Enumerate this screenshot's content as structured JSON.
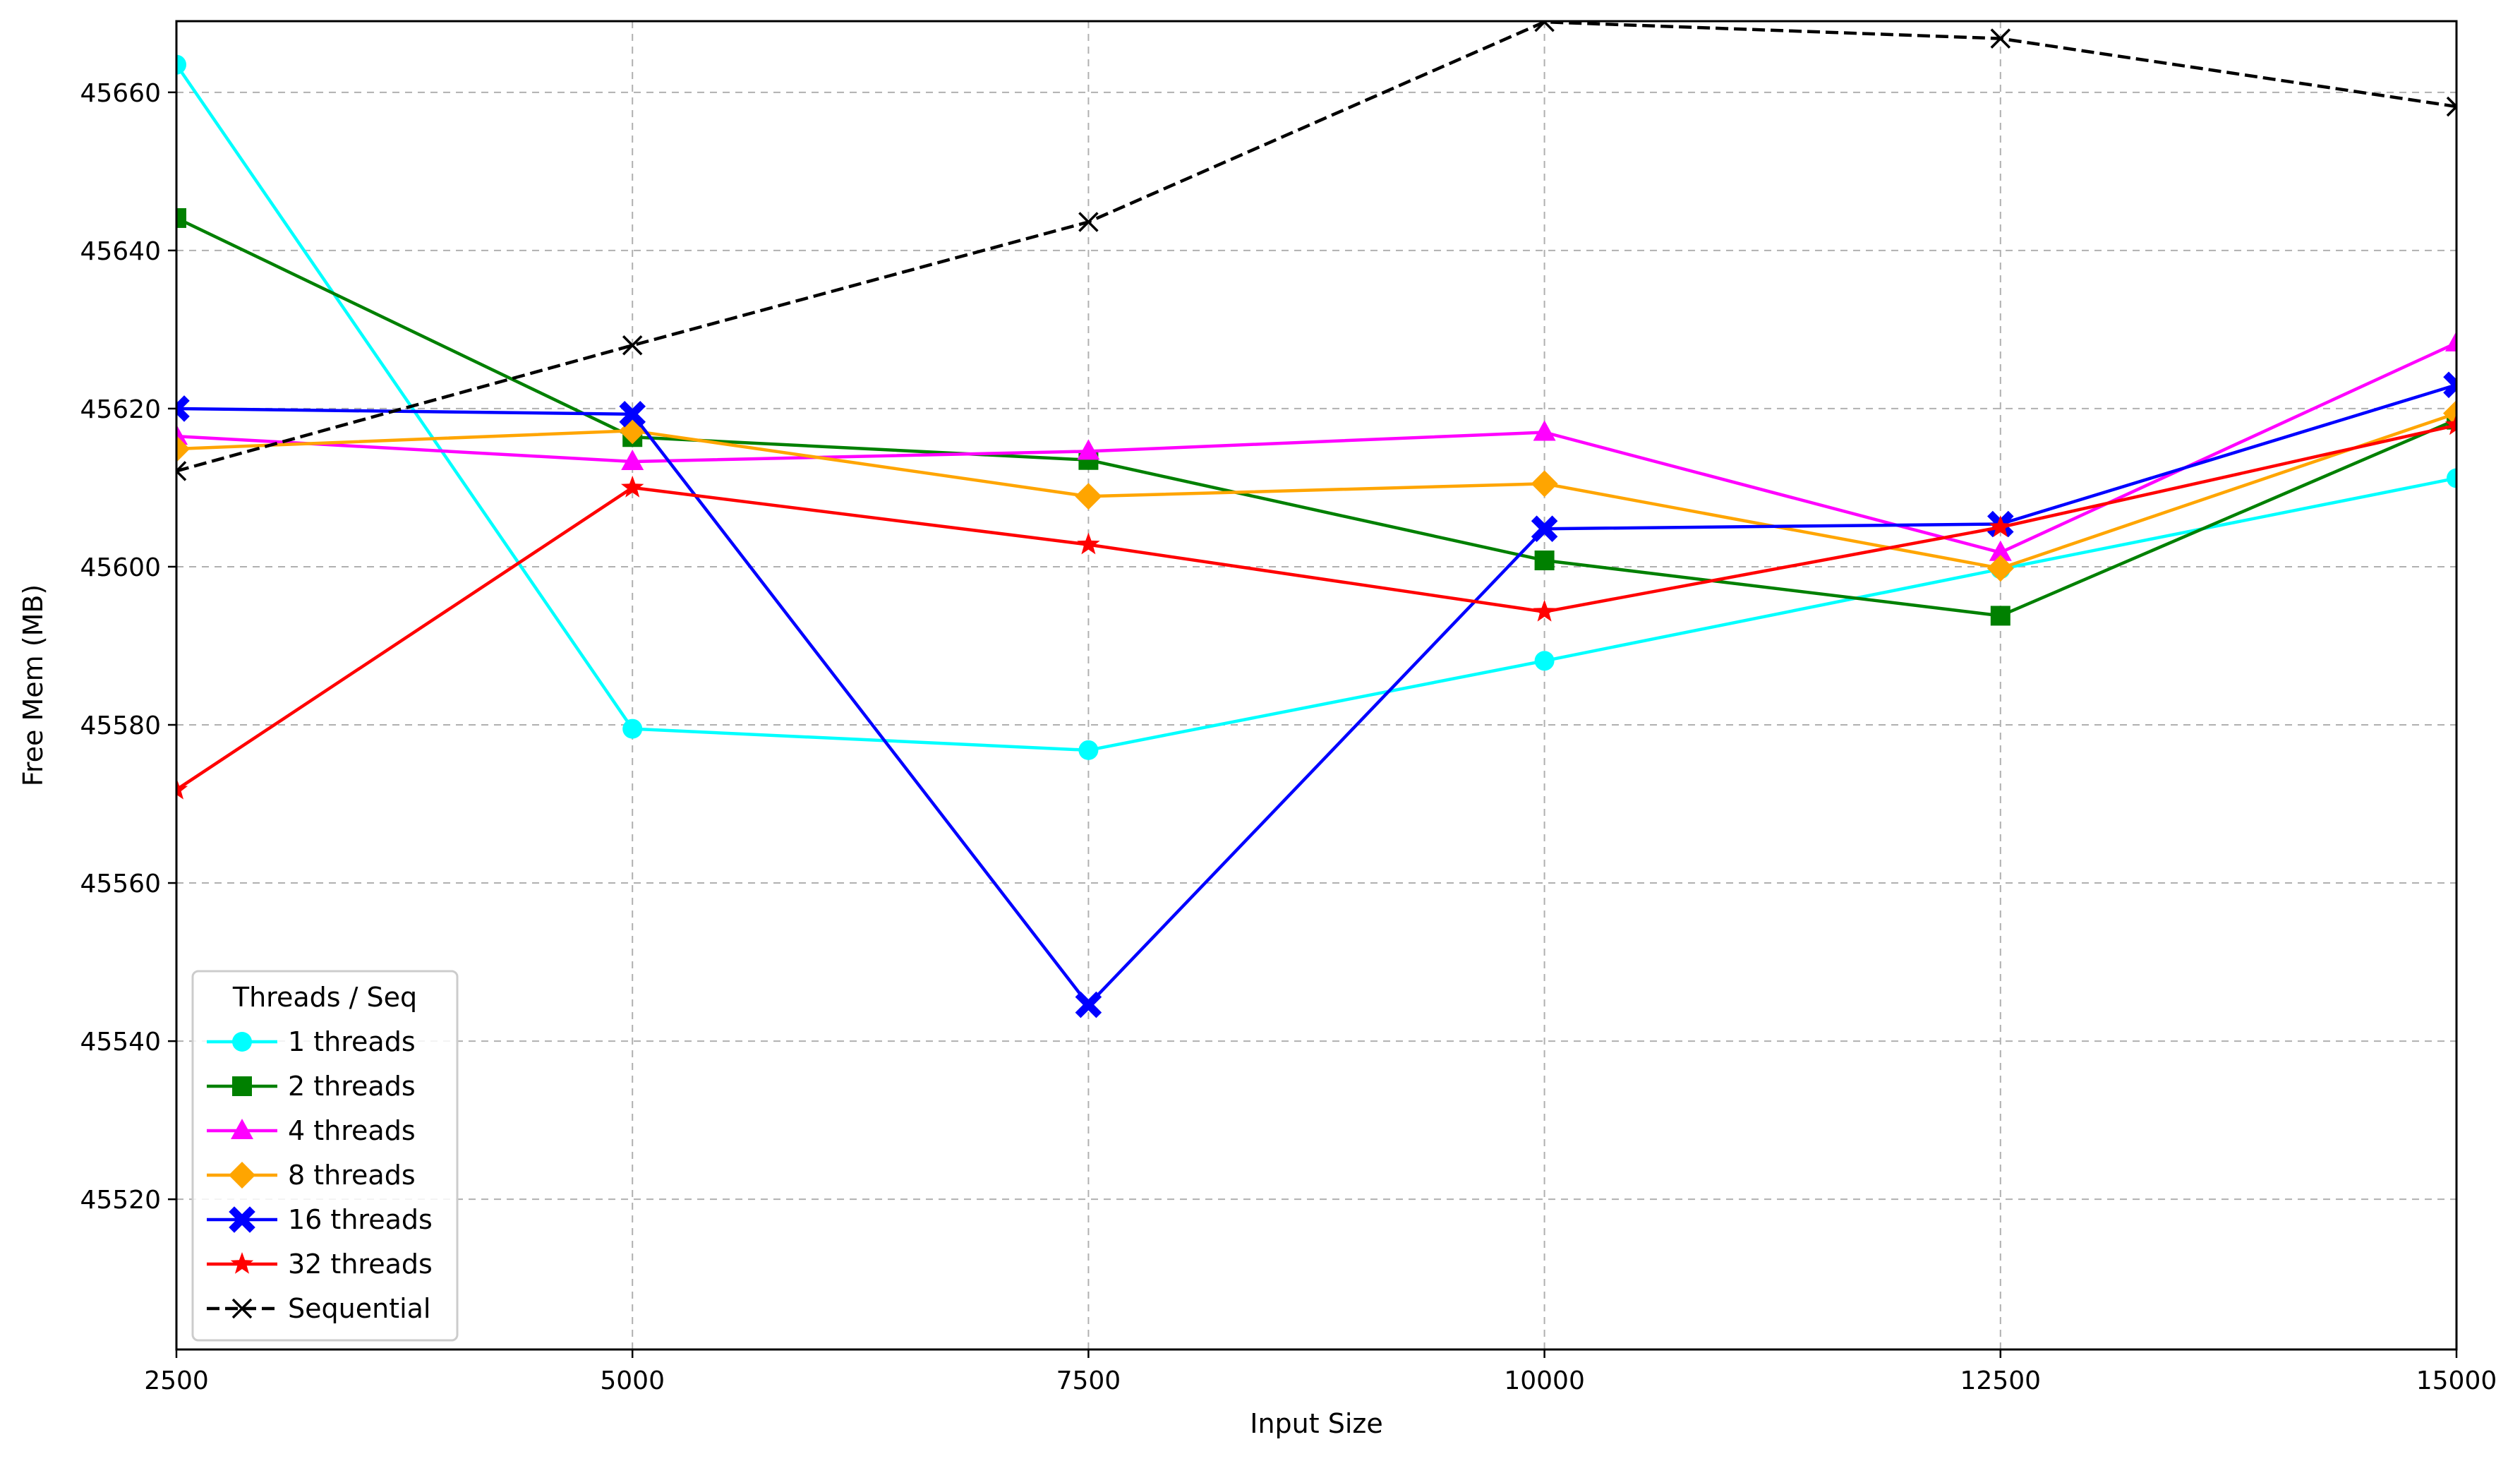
{
  "chart_data": {
    "type": "line",
    "title": "",
    "xlabel": "Input Size",
    "ylabel": "Free Mem (MB)",
    "x": [
      2500,
      5000,
      7500,
      10000,
      12500,
      15000
    ],
    "xlim": [
      2500,
      15000
    ],
    "ylim": [
      45501,
      45669
    ],
    "xticks": [
      2500,
      5000,
      7500,
      10000,
      12500,
      15000
    ],
    "yticks": [
      45520,
      45540,
      45560,
      45580,
      45600,
      45620,
      45640,
      45660
    ],
    "grid": true,
    "legend_title": "Threads / Seq",
    "legend_position": "lower-left",
    "series": [
      {
        "name": "1 threads",
        "color": "#00ffff",
        "marker": "circle",
        "dash": "solid",
        "values": [
          45663.5,
          45579.5,
          45576.8,
          45588.1,
          45599.7,
          45611.2
        ]
      },
      {
        "name": "2 threads",
        "color": "#008000",
        "marker": "square",
        "dash": "solid",
        "values": [
          45644.1,
          45616.4,
          45613.5,
          45600.8,
          45593.8,
          45618.6
        ]
      },
      {
        "name": "4 threads",
        "color": "#ff00ff",
        "marker": "triangle",
        "dash": "solid",
        "values": [
          45616.5,
          45613.3,
          45614.6,
          45617.0,
          45601.8,
          45628.3
        ]
      },
      {
        "name": "8 threads",
        "color": "#ffa500",
        "marker": "diamond",
        "dash": "solid",
        "values": [
          45614.9,
          45617.2,
          45608.9,
          45610.5,
          45599.8,
          45619.4
        ]
      },
      {
        "name": "16 threads",
        "color": "#0000ff",
        "marker": "x-filled",
        "dash": "solid",
        "values": [
          45620.0,
          45619.3,
          45544.6,
          45604.8,
          45605.4,
          45623.0
        ]
      },
      {
        "name": "32 threads",
        "color": "#ff0000",
        "marker": "star",
        "dash": "solid",
        "values": [
          45571.8,
          45610.0,
          45602.8,
          45594.3,
          45605.0,
          45617.9
        ]
      },
      {
        "name": "Sequential",
        "color": "#000000",
        "marker": "x",
        "dash": "dashed",
        "values": [
          45612.1,
          45628.0,
          45643.6,
          45668.9,
          45666.8,
          45658.2
        ]
      }
    ]
  }
}
